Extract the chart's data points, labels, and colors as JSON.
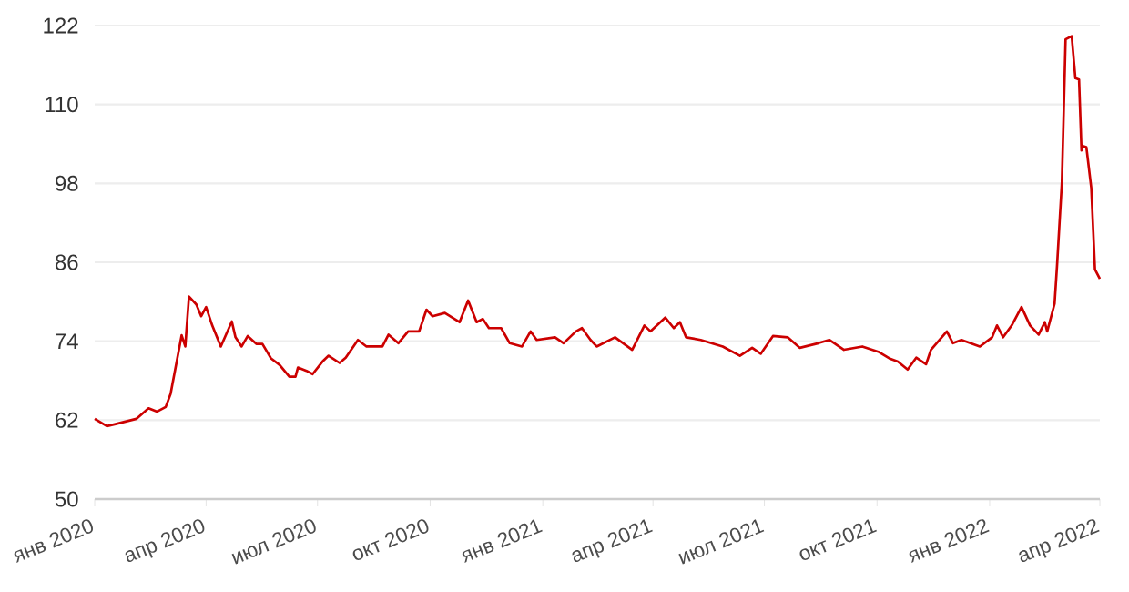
{
  "chart_data": {
    "type": "line",
    "x": [
      "2020-01-01",
      "2020-01-11",
      "2020-01-18",
      "2020-02-04",
      "2020-02-14",
      "2020-02-21",
      "2020-02-28",
      "2020-03-03",
      "2020-03-12",
      "2020-03-15",
      "2020-03-18",
      "2020-03-24",
      "2020-03-28",
      "2020-04-01",
      "2020-04-06",
      "2020-04-13",
      "2020-04-17",
      "2020-04-22",
      "2020-04-25",
      "2020-04-30",
      "2020-05-05",
      "2020-05-12",
      "2020-05-17",
      "2020-05-24",
      "2020-05-31",
      "2020-06-08",
      "2020-06-13",
      "2020-06-15",
      "2020-06-22",
      "2020-06-27",
      "2020-07-05",
      "2020-07-10",
      "2020-07-19",
      "2020-07-24",
      "2020-08-03",
      "2020-08-10",
      "2020-08-23",
      "2020-08-28",
      "2020-09-05",
      "2020-09-13",
      "2020-09-22",
      "2020-09-28",
      "2020-10-03",
      "2020-10-13",
      "2020-10-25",
      "2020-11-01",
      "2020-11-08",
      "2020-11-13",
      "2020-11-18",
      "2020-11-28",
      "2020-12-05",
      "2020-12-15",
      "2020-12-22",
      "2020-12-27",
      "2021-01-11",
      "2021-01-18",
      "2021-01-28",
      "2021-02-02",
      "2021-02-09",
      "2021-02-14",
      "2021-03-01",
      "2021-03-15",
      "2021-03-25",
      "2021-03-30",
      "2021-04-11",
      "2021-04-18",
      "2021-04-23",
      "2021-04-28",
      "2021-05-10",
      "2021-05-28",
      "2021-06-11",
      "2021-06-21",
      "2021-06-28",
      "2021-07-08",
      "2021-07-20",
      "2021-07-30",
      "2021-08-14",
      "2021-08-23",
      "2021-09-04",
      "2021-09-19",
      "2021-10-02",
      "2021-10-11",
      "2021-10-18",
      "2021-10-26",
      "2021-11-02",
      "2021-11-10",
      "2021-11-14",
      "2021-11-27",
      "2021-12-02",
      "2021-12-09",
      "2021-12-24",
      "2022-01-03",
      "2022-01-07",
      "2022-01-12",
      "2022-01-19",
      "2022-01-27",
      "2022-02-03",
      "2022-02-10",
      "2022-02-15",
      "2022-02-17",
      "2022-02-23",
      "2022-02-25",
      "2022-03-01",
      "2022-03-04",
      "2022-03-09",
      "2022-03-12",
      "2022-03-15",
      "2022-03-17",
      "2022-03-18",
      "2022-03-21",
      "2022-03-25",
      "2022-03-28",
      "2022-04-01"
    ],
    "series": [
      {
        "color": "#cc0000",
        "values": [
          62.2,
          61.1,
          61.4,
          62.2,
          63.8,
          63.3,
          64.0,
          66.0,
          74.9,
          73.2,
          80.8,
          79.6,
          77.8,
          79.2,
          76.4,
          73.2,
          74.9,
          77.0,
          74.6,
          73.2,
          74.8,
          73.6,
          73.6,
          71.4,
          70.4,
          68.6,
          68.6,
          70.0,
          69.5,
          69.0,
          70.9,
          71.8,
          70.7,
          71.5,
          74.2,
          73.2,
          73.2,
          75.0,
          73.7,
          75.5,
          75.5,
          78.8,
          77.8,
          78.3,
          76.9,
          80.2,
          76.9,
          77.4,
          76.0,
          76.0,
          73.7,
          73.2,
          75.5,
          74.2,
          74.6,
          73.7,
          75.5,
          76.0,
          74.2,
          73.2,
          74.6,
          72.7,
          76.4,
          75.5,
          77.6,
          76.0,
          76.9,
          74.6,
          74.2,
          73.2,
          71.8,
          73.0,
          72.1,
          74.8,
          74.6,
          73.0,
          73.7,
          74.2,
          72.7,
          73.2,
          72.4,
          71.4,
          70.9,
          69.7,
          71.5,
          70.5,
          72.7,
          75.5,
          73.7,
          74.2,
          73.2,
          74.6,
          76.4,
          74.6,
          76.4,
          79.2,
          76.4,
          75.0,
          76.9,
          75.5,
          79.7,
          85.4,
          98.2,
          119.9,
          120.4,
          114.0,
          113.8,
          103.0,
          103.7,
          103.5,
          97.3,
          84.9,
          83.5
        ]
      }
    ],
    "xlim": [
      "2020-01-01",
      "2022-04-01"
    ],
    "xticks": [
      {
        "value": "2020-01-01",
        "label": "янв 2020"
      },
      {
        "value": "2020-04-01",
        "label": "апр 2020"
      },
      {
        "value": "2020-07-01",
        "label": "июл 2020"
      },
      {
        "value": "2020-10-01",
        "label": "окт 2020"
      },
      {
        "value": "2021-01-01",
        "label": "янв 2021"
      },
      {
        "value": "2021-04-01",
        "label": "апр 2021"
      },
      {
        "value": "2021-07-01",
        "label": "июл 2021"
      },
      {
        "value": "2021-10-01",
        "label": "окт 2021"
      },
      {
        "value": "2022-01-01",
        "label": "янв 2022"
      },
      {
        "value": "2022-04-01",
        "label": "апр 2022"
      }
    ],
    "ylim": [
      50,
      122
    ],
    "yticks": [
      50,
      62,
      74,
      86,
      98,
      110,
      122
    ],
    "grid": "y"
  }
}
